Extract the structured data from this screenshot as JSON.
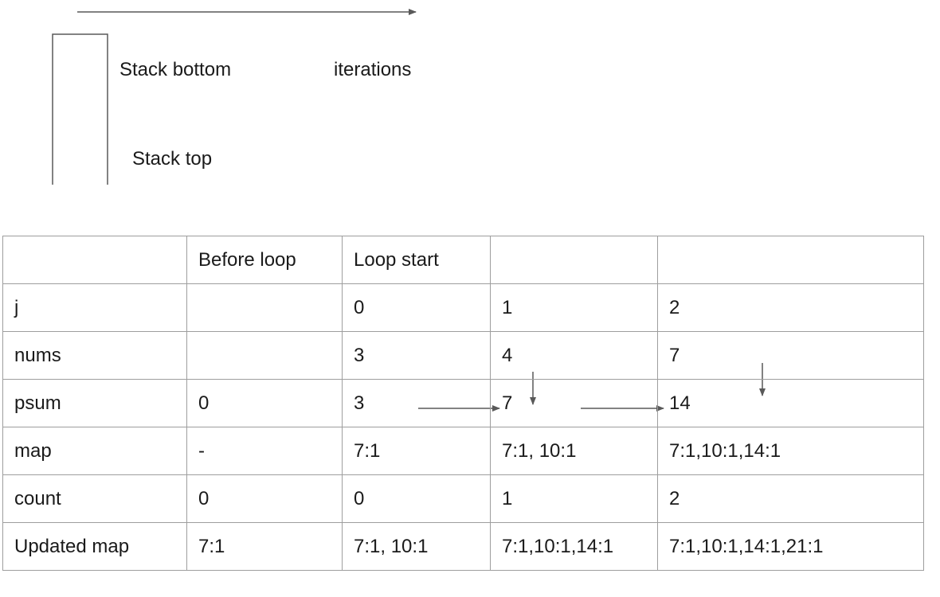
{
  "legend": {
    "stack_bottom": "Stack bottom",
    "stack_top": "Stack top",
    "iterations": "iterations"
  },
  "table": {
    "header": [
      "",
      "Before loop",
      "Loop start",
      "",
      ""
    ],
    "rows": [
      {
        "label": "j",
        "cells": [
          "",
          "0",
          "1",
          "2"
        ]
      },
      {
        "label": "nums",
        "cells": [
          "",
          "3",
          "4",
          "7"
        ]
      },
      {
        "label": "psum",
        "cells": [
          "0",
          "3",
          "7",
          "14"
        ]
      },
      {
        "label": "map",
        "cells": [
          "-",
          "7:1",
          "7:1, 10:1",
          "7:1,10:1,14:1"
        ]
      },
      {
        "label": "count",
        "cells": [
          "0",
          "0",
          "1",
          "2"
        ]
      },
      {
        "label": "Updated map",
        "cells": [
          "7:1",
          "7:1, 10:1",
          "7:1,10:1,14:1",
          "7:1,10:1,14:1,21:1"
        ]
      }
    ]
  },
  "colors": {
    "line": "#595959",
    "grid": "#9e9e9e",
    "text": "#1a1a1a"
  }
}
